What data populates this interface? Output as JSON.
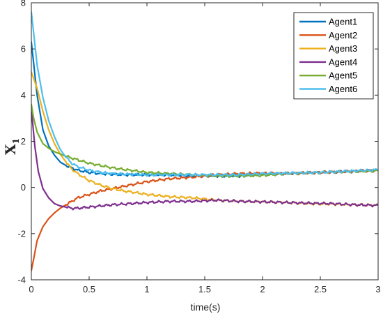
{
  "chart_data": {
    "type": "line",
    "xlabel": "time(s)",
    "ylabel_main": "X",
    "ylabel_sub": "1",
    "xlim": [
      0,
      3
    ],
    "ylim": [
      -4,
      8
    ],
    "xticks": [
      0,
      0.5,
      1,
      1.5,
      2,
      2.5,
      3
    ],
    "xtick_labels": [
      "0",
      "0.5",
      "1",
      "1.5",
      "2",
      "2.5",
      "3"
    ],
    "yticks": [
      -4,
      -2,
      0,
      2,
      4,
      6,
      8
    ],
    "ytick_labels": [
      "-4",
      "-2",
      "0",
      "2",
      "4",
      "6",
      "8"
    ],
    "grid": false,
    "legend_position": "top-right",
    "series": [
      {
        "name": "Agent1",
        "color": "#0072BD",
        "x": [
          0,
          0.05,
          0.1,
          0.15,
          0.2,
          0.25,
          0.3,
          0.4,
          0.5,
          0.6,
          0.8,
          1.0,
          1.2,
          1.4,
          1.5,
          1.6,
          1.8,
          2.0,
          2.2,
          2.5,
          2.8,
          3.0
        ],
        "y": [
          6.3,
          4.0,
          2.5,
          1.8,
          1.4,
          1.1,
          0.95,
          0.75,
          0.65,
          0.6,
          0.55,
          0.55,
          0.55,
          0.5,
          0.5,
          0.5,
          0.5,
          0.6,
          0.6,
          0.65,
          0.7,
          0.75
        ]
      },
      {
        "name": "Agent2",
        "color": "#D95319",
        "x": [
          0,
          0.02,
          0.05,
          0.1,
          0.15,
          0.2,
          0.25,
          0.3,
          0.35,
          0.4,
          0.5,
          0.6,
          0.7,
          0.8,
          0.9,
          1.0,
          1.1,
          1.2,
          1.4,
          1.6,
          1.8,
          2.0,
          2.2,
          2.5,
          2.8,
          3.0
        ],
        "y": [
          -3.6,
          -3.1,
          -2.3,
          -1.7,
          -1.35,
          -1.1,
          -0.9,
          -0.75,
          -0.6,
          -0.45,
          -0.3,
          -0.15,
          -0.05,
          0.05,
          0.15,
          0.25,
          0.32,
          0.38,
          0.45,
          0.55,
          0.6,
          0.62,
          0.6,
          0.65,
          0.7,
          0.75
        ]
      },
      {
        "name": "Agent3",
        "color": "#EDB120",
        "x": [
          0,
          0.05,
          0.1,
          0.15,
          0.2,
          0.25,
          0.3,
          0.35,
          0.4,
          0.5,
          0.6,
          0.7,
          0.8,
          0.9,
          1.0,
          1.1,
          1.2,
          1.4,
          1.6,
          1.8,
          2.0,
          2.2,
          2.4,
          2.6,
          2.8,
          3.0
        ],
        "y": [
          5.0,
          4.3,
          3.3,
          2.5,
          1.9,
          1.45,
          1.1,
          0.8,
          0.6,
          0.3,
          0.1,
          -0.05,
          -0.15,
          -0.22,
          -0.3,
          -0.35,
          -0.4,
          -0.45,
          -0.55,
          -0.6,
          -0.62,
          -0.65,
          -0.7,
          -0.72,
          -0.75,
          -0.77
        ]
      },
      {
        "name": "Agent4",
        "color": "#7E2F8E",
        "x": [
          0,
          0.03,
          0.06,
          0.1,
          0.15,
          0.2,
          0.25,
          0.3,
          0.35,
          0.4,
          0.5,
          0.6,
          0.7,
          0.8,
          1.0,
          1.2,
          1.4,
          1.6,
          1.8,
          2.0,
          2.2,
          2.4,
          2.6,
          2.8,
          3.0
        ],
        "y": [
          3.4,
          1.8,
          0.7,
          -0.05,
          -0.45,
          -0.7,
          -0.8,
          -0.85,
          -0.9,
          -0.9,
          -0.85,
          -0.8,
          -0.75,
          -0.72,
          -0.65,
          -0.6,
          -0.6,
          -0.55,
          -0.6,
          -0.62,
          -0.65,
          -0.68,
          -0.7,
          -0.75,
          -0.78
        ]
      },
      {
        "name": "Agent5",
        "color": "#77AC30",
        "x": [
          0,
          0.02,
          0.05,
          0.1,
          0.15,
          0.2,
          0.25,
          0.3,
          0.4,
          0.5,
          0.6,
          0.7,
          0.8,
          0.9,
          1.0,
          1.2,
          1.4,
          1.6,
          1.8,
          2.0,
          2.2,
          2.5,
          2.8,
          3.0
        ],
        "y": [
          3.6,
          3.0,
          2.4,
          1.9,
          1.7,
          1.55,
          1.45,
          1.35,
          1.2,
          1.05,
          0.95,
          0.85,
          0.78,
          0.72,
          0.65,
          0.6,
          0.55,
          0.5,
          0.5,
          0.52,
          0.6,
          0.65,
          0.7,
          0.72
        ]
      },
      {
        "name": "Agent6",
        "color": "#4DBEEE",
        "x": [
          0,
          0.02,
          0.05,
          0.1,
          0.15,
          0.2,
          0.25,
          0.3,
          0.35,
          0.4,
          0.5,
          0.6,
          0.7,
          0.8,
          1.0,
          1.2,
          1.4,
          1.6,
          1.8,
          2.0,
          2.2,
          2.5,
          2.8,
          3.0
        ],
        "y": [
          7.6,
          6.7,
          5.3,
          3.9,
          2.9,
          2.2,
          1.65,
          1.3,
          1.05,
          0.9,
          0.75,
          0.65,
          0.6,
          0.58,
          0.55,
          0.55,
          0.55,
          0.55,
          0.55,
          0.6,
          0.62,
          0.65,
          0.72,
          0.77
        ]
      }
    ]
  }
}
